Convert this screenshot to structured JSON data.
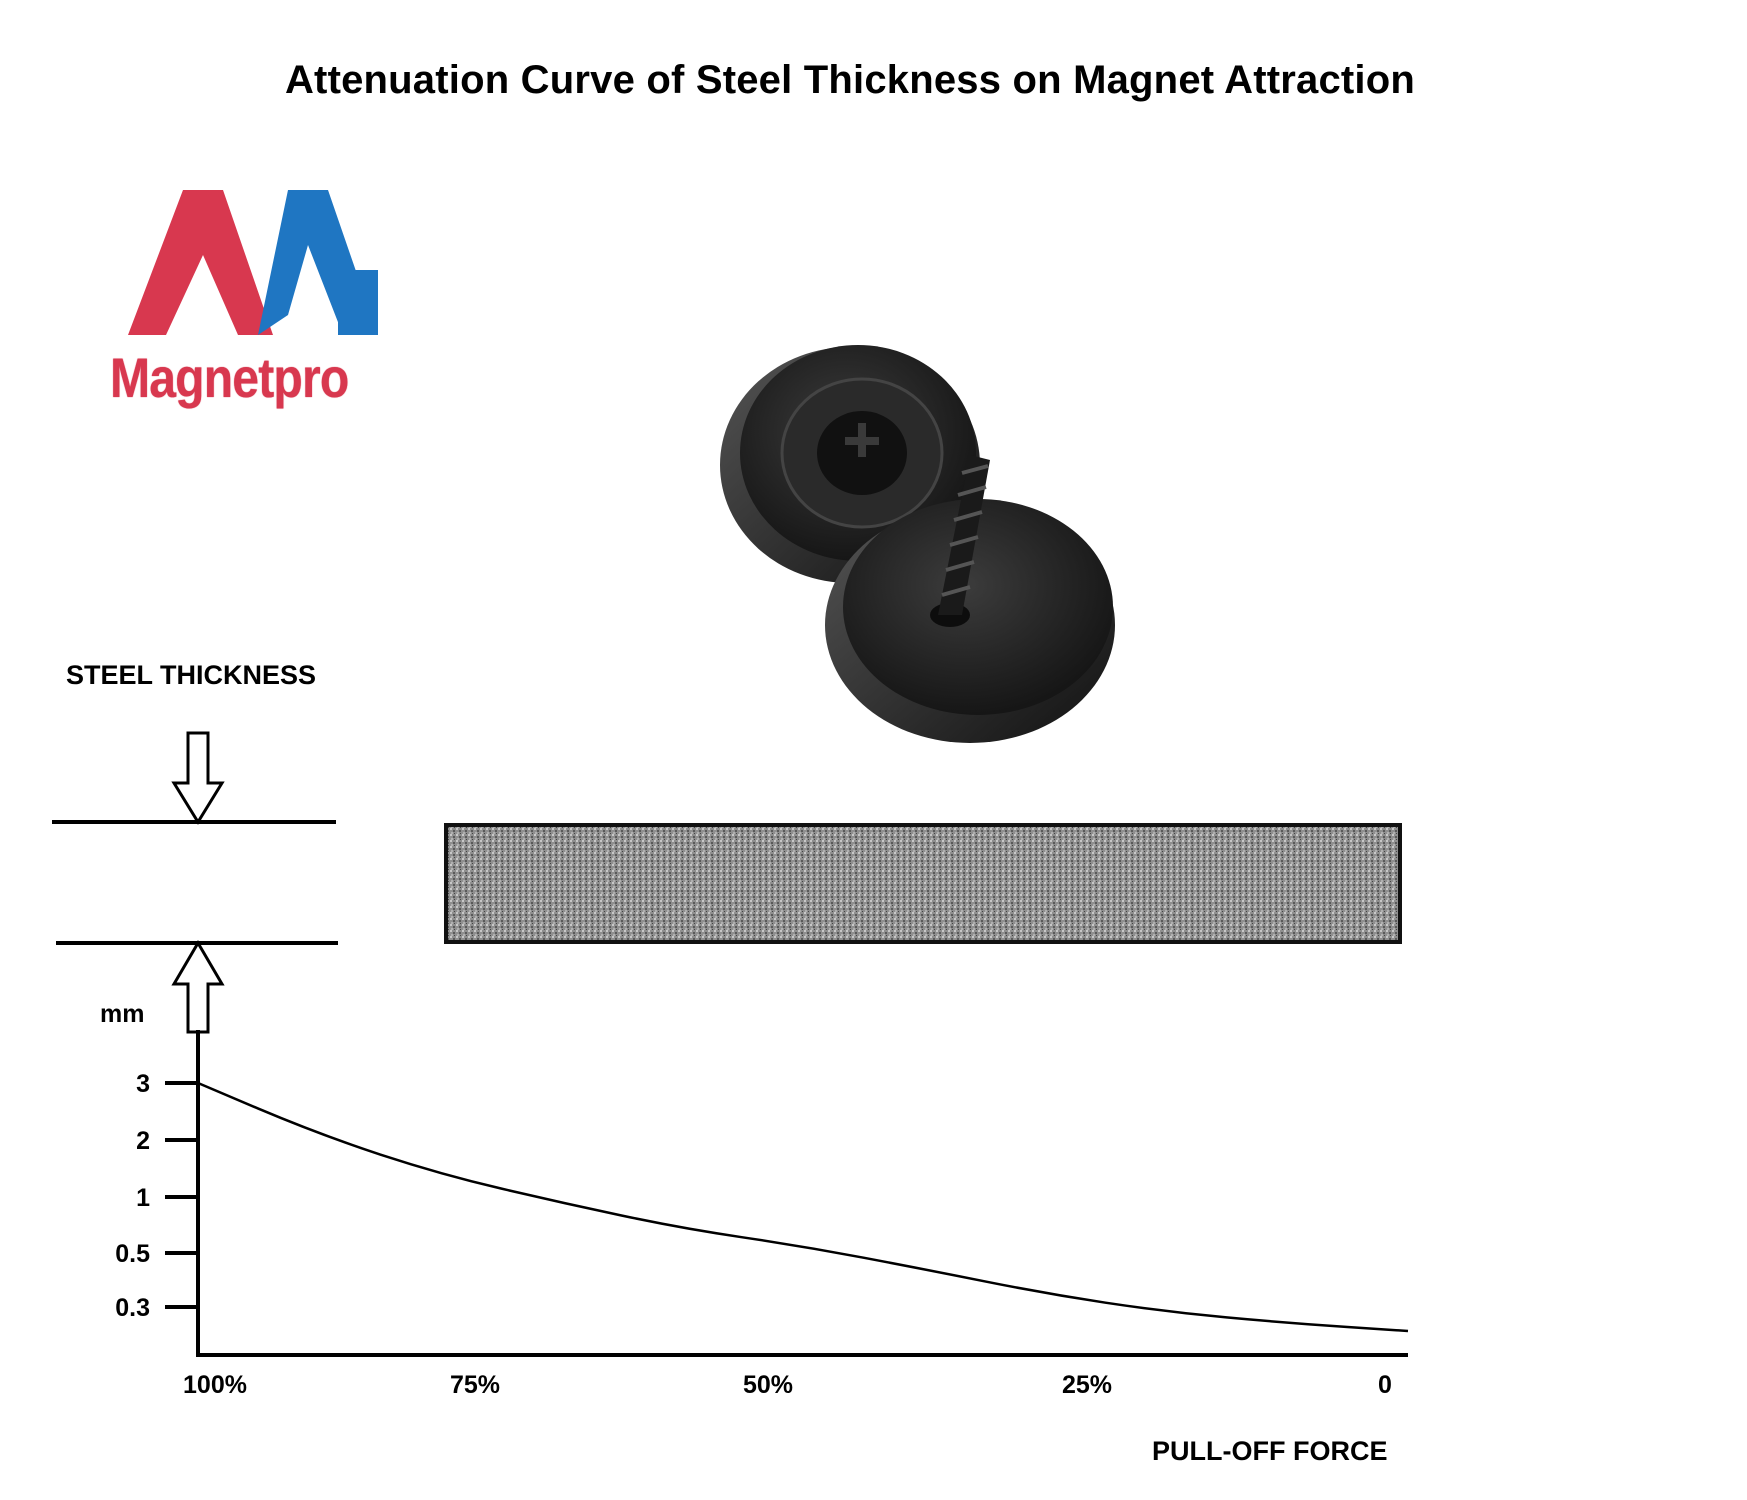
{
  "title": "Attenuation Curve of Steel Thickness on Magnet Attraction",
  "logo": {
    "text": "Magnetpro",
    "colors": {
      "left": "#d8384f",
      "right": "#1f76c2"
    }
  },
  "product": {
    "icon": "magnet-with-screw-image"
  },
  "steel_label": "STEEL THICKNESS",
  "steel_plate": {
    "fill": "#9a9a9a",
    "border": "#111111"
  },
  "chart_data": {
    "type": "line",
    "title": "",
    "xlabel": "PULL-OFF FORCE",
    "ylabel": "mm",
    "x_ticks": [
      "100%",
      "75%",
      "50%",
      "25%",
      "0"
    ],
    "y_ticks": [
      "3",
      "2",
      "1",
      "0.5",
      "0.3"
    ],
    "series": [
      {
        "x": [
          100,
          90,
          80,
          70,
          60,
          50,
          40,
          30,
          20,
          10,
          0
        ],
        "y": [
          3,
          2.1,
          1.4,
          0.95,
          0.72,
          0.56,
          0.44,
          0.35,
          0.27,
          0.2,
          0.15
        ]
      }
    ],
    "xlim": [
      100,
      0
    ],
    "grid": false,
    "legend": "none"
  }
}
